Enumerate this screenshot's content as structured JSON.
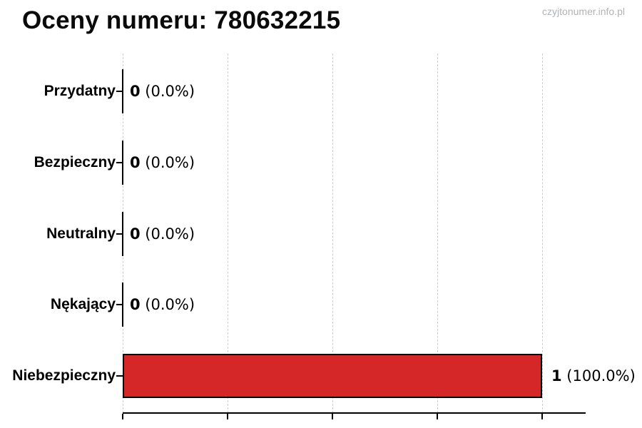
{
  "header": {
    "watermark": "czyjtonumer.info.pl"
  },
  "chart_data": {
    "type": "bar",
    "orientation": "horizontal",
    "title": "Oceny numeru: 780632215",
    "categories": [
      "Przydatny",
      "Bezpieczny",
      "Neutralny",
      "Nękający",
      "Niebezpieczny"
    ],
    "values": [
      0,
      0,
      0,
      0,
      1
    ],
    "value_labels": [
      {
        "count": "0",
        "pct": "(0.0%)"
      },
      {
        "count": "0",
        "pct": "(0.0%)"
      },
      {
        "count": "0",
        "pct": "(0.0%)"
      },
      {
        "count": "0",
        "pct": "(0.0%)"
      },
      {
        "count": "1",
        "pct": "(100.0%)"
      }
    ],
    "xlabel": "",
    "ylabel": "",
    "axis": {
      "min": 0,
      "max": 1,
      "gridline_values": [
        0,
        0.25,
        0.5,
        0.75,
        1.0
      ]
    },
    "grid": true,
    "legend": "none",
    "colors": {
      "bar_fill": "#d62728",
      "bar_edge": "#000000",
      "grid": "#cccccc",
      "axis": "#000000",
      "text": "#000000",
      "watermark": "#b0b3b5"
    }
  }
}
